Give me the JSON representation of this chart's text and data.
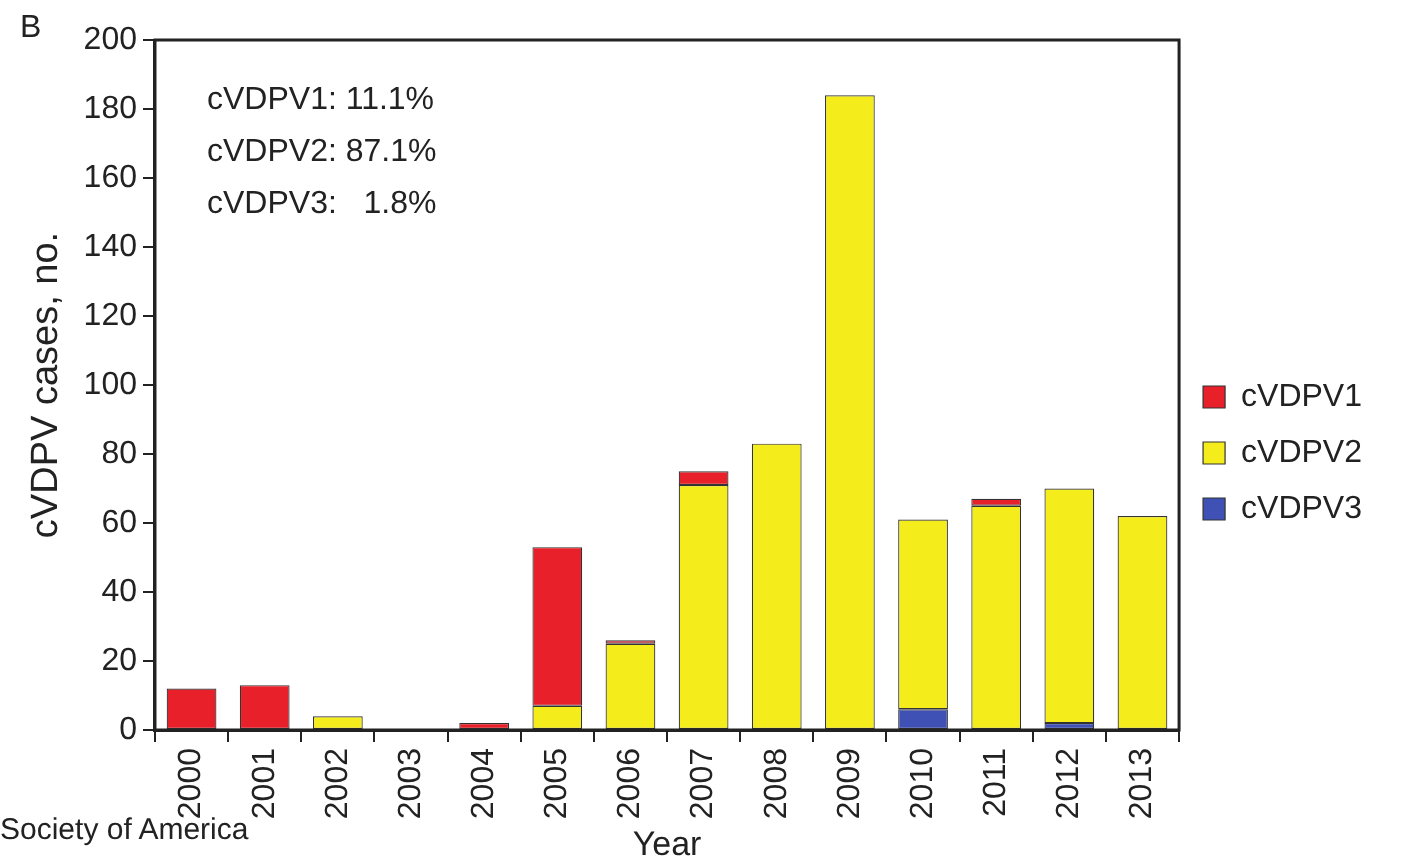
{
  "chart_data": {
    "type": "bar",
    "stacked": true,
    "ylabel": "cVDPV cases, no.",
    "xlabel": "Year",
    "categories": [
      "2000",
      "2001",
      "2002",
      "2003",
      "2004",
      "2005",
      "2006",
      "2007",
      "2008",
      "2009",
      "2010",
      "2011",
      "2012",
      "2013"
    ],
    "series": [
      {
        "name": "cVDPV3",
        "color": "#3f51b5",
        "values": [
          0,
          0,
          0,
          0,
          0,
          0,
          0,
          0,
          0,
          0,
          6,
          0,
          2,
          0
        ]
      },
      {
        "name": "cVDPV2",
        "color": "#f5ec1c",
        "values": [
          0,
          0,
          4,
          0,
          0,
          7,
          25,
          71,
          83,
          184,
          55,
          65,
          68,
          62
        ]
      },
      {
        "name": "cVDPV1",
        "color": "#e8202a",
        "values": [
          12,
          13,
          0,
          0,
          2,
          46,
          1,
          4,
          0,
          0,
          0,
          2,
          0,
          0
        ]
      }
    ],
    "ylim": [
      0,
      200
    ],
    "yticks": [
      0,
      20,
      40,
      60,
      80,
      100,
      120,
      140,
      160,
      180,
      200
    ],
    "grid": false,
    "legend": "right",
    "annotations": [
      "B",
      "cVDPV1: 11.1%",
      "cVDPV2: 87.1%",
      "cVDPV3:   1.8%",
      "Society of America"
    ]
  }
}
